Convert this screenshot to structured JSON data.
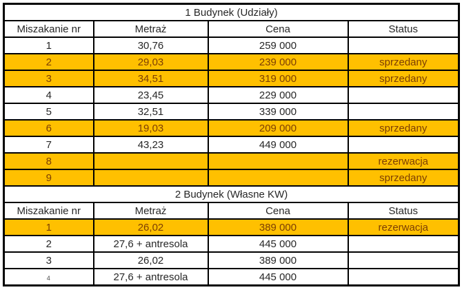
{
  "colors": {
    "section_header_bg": "#BF8F00",
    "section_header_text": "#1c1403",
    "highlight_bg": "#FFC000",
    "highlight_text": "#7B3E04",
    "normal_text": "#262626",
    "cell_bg": "#ffffff",
    "border": "#000000"
  },
  "columns": [
    "Miszakanie nr",
    "Metraż",
    "Cena",
    "Status"
  ],
  "sections": [
    {
      "title": "1 Budynek (Udziały)",
      "rows": [
        {
          "nr": "1",
          "metraz": "30,76",
          "cena": "259 000",
          "status": "",
          "highlight": false
        },
        {
          "nr": "2",
          "metraz": "29,03",
          "cena": "239 000",
          "status": "sprzedany",
          "highlight": true
        },
        {
          "nr": "3",
          "metraz": "34,51",
          "cena": "319 000",
          "status": "sprzedany",
          "highlight": true
        },
        {
          "nr": "4",
          "metraz": "23,45",
          "cena": "229 000",
          "status": "",
          "highlight": false
        },
        {
          "nr": "5",
          "metraz": "32,51",
          "cena": "339 000",
          "status": "",
          "highlight": false
        },
        {
          "nr": "6",
          "metraz": "19,03",
          "cena": "209 000",
          "status": "sprzedany",
          "highlight": true
        },
        {
          "nr": "7",
          "metraz": "43,23",
          "cena": "449 000",
          "status": "",
          "highlight": false
        },
        {
          "nr": "8",
          "metraz": "",
          "cena": "",
          "status": "rezerwacja",
          "highlight": true
        },
        {
          "nr": "9",
          "metraz": "",
          "cena": "",
          "status": "sprzedany",
          "highlight": true
        }
      ]
    },
    {
      "title": "2 Budynek (Własne KW)",
      "rows": [
        {
          "nr": "1",
          "metraz": "26,02",
          "cena": "389 000",
          "status": "rezerwacja",
          "highlight": true
        },
        {
          "nr": "2",
          "metraz": "27,6 + antresola",
          "cena": "445 000",
          "status": "",
          "highlight": false
        },
        {
          "nr": "3",
          "metraz": "26,02",
          "cena": "389 000",
          "status": "",
          "highlight": false
        },
        {
          "nr": "4",
          "metraz": "27,6 + antresola",
          "cena": "445 000",
          "status": "",
          "highlight": false,
          "nr_partially_visible": true
        }
      ]
    }
  ]
}
